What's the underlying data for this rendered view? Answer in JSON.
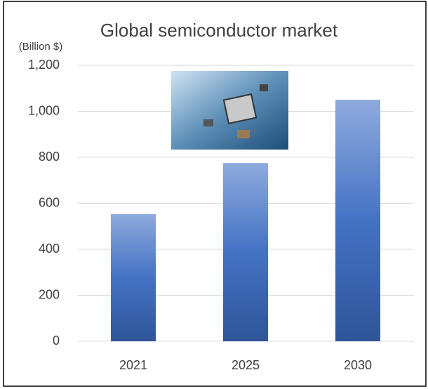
{
  "chart_data": {
    "type": "bar",
    "title": "Global semiconductor market",
    "y_label": "(Billion $)",
    "categories": [
      "2021",
      "2025",
      "2030"
    ],
    "values": [
      553,
      775,
      1050
    ],
    "color": "#4472c4",
    "ylim": [
      0,
      1200
    ],
    "yticks": [
      0,
      200,
      400,
      600,
      800,
      {
        "value": 1000,
        "label": "1,000"
      },
      {
        "value": 1200,
        "label": "1,200"
      }
    ],
    "grid": true
  }
}
